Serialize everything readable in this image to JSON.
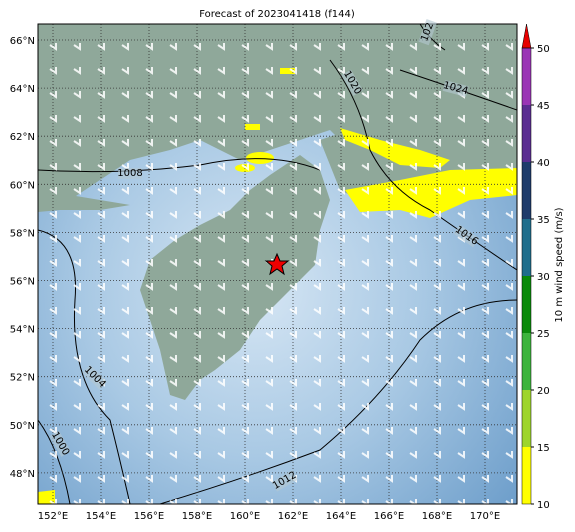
{
  "title": "Forecast of 2023041418 (f144)",
  "lon_labels": [
    "152°E",
    "154°E",
    "156°E",
    "158°E",
    "160°E",
    "162°E",
    "164°E",
    "166°E",
    "168°E",
    "170°E"
  ],
  "lat_labels": [
    "66°N",
    "64°N",
    "62°N",
    "60°N",
    "58°N",
    "56°N",
    "54°N",
    "52°N",
    "50°N",
    "48°N"
  ],
  "contour_labels": [
    "1008",
    "1020",
    "1024",
    "1016",
    "1004",
    "1000",
    "1012",
    "102"
  ],
  "colorbar": {
    "label": "10 m wind speed (m/s)",
    "ticks": [
      10,
      15,
      20,
      25,
      30,
      35,
      40,
      45,
      50
    ],
    "colors": [
      "#ffff00",
      "#9ed52b",
      "#3cb43c",
      "#0a8a0a",
      "#1f6e8c",
      "#1e3b6b",
      "#5a2d91",
      "#9a35b5"
    ],
    "extend_color": "#e60000"
  }
}
